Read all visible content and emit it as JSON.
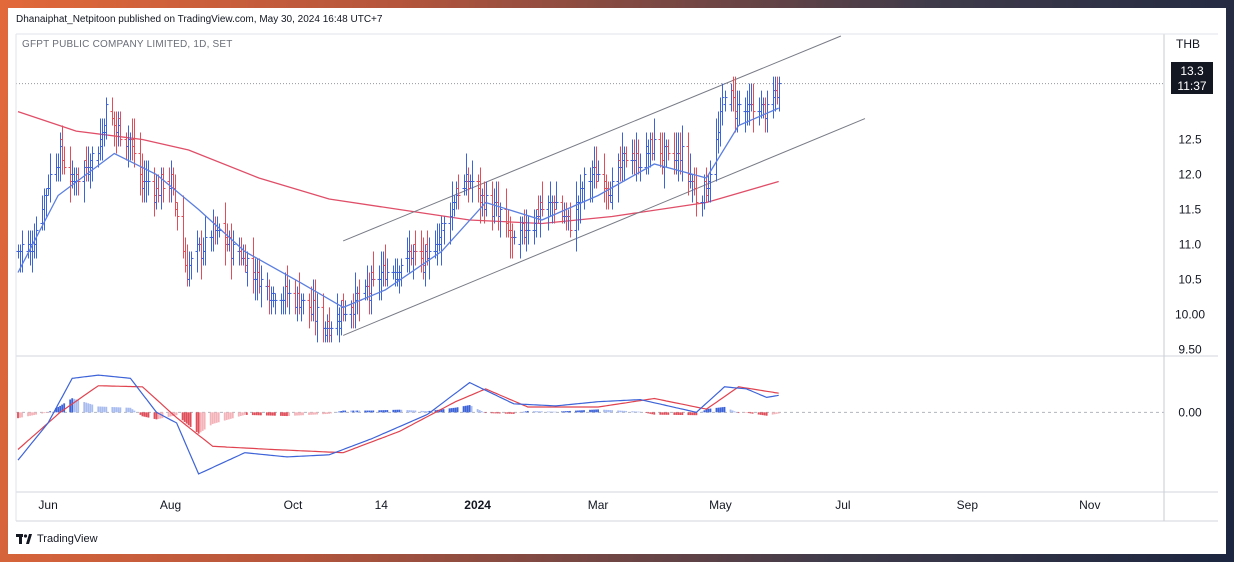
{
  "header": {
    "publish_line": "Dhanaiphat_Netpitoon published on TradingView.com, May 30, 2024 16:48 UTC+7",
    "symbol_line": "GFPT PUBLIC COMPANY LIMITED, 1D, SET"
  },
  "price_scale": {
    "currency": "THB",
    "last_price": "13.3",
    "countdown": "11:37"
  },
  "footer": {
    "brand": "TradingView"
  },
  "colors": {
    "up": "#3d63d8",
    "down": "#e04e5a",
    "ma_short": "#5b7fe0",
    "ma_long": "#e04e68",
    "macd_line": "#3d63d8",
    "signal_line": "#e0434f",
    "channel": "#787b86"
  },
  "chart_data": [
    {
      "type": "candlestick",
      "title": "GFPT PUBLIC COMPANY LIMITED, 1D, SET",
      "x_ticks": [
        "Jun",
        "Aug",
        "Oct",
        "14",
        "2024",
        "Mar",
        "May",
        "Jul",
        "Sep",
        "Nov"
      ],
      "y_ticks": [
        9.5,
        10.0,
        10.5,
        11.0,
        11.5,
        12.0,
        12.5
      ],
      "ylim": [
        9.42,
        13.98
      ],
      "start_date": "2023-05-17",
      "last_date": "2024-05-30",
      "xlim": [
        "2023-05-17",
        "2024-11-30"
      ],
      "last_price": 13.3,
      "close_anchors": [
        [
          "2023-05-17",
          10.9
        ],
        [
          "2023-05-24",
          11.0
        ],
        [
          "2023-06-01",
          11.9
        ],
        [
          "2023-06-07",
          12.3
        ],
        [
          "2023-06-13",
          11.9
        ],
        [
          "2023-06-19",
          12.1
        ],
        [
          "2023-06-26",
          12.4
        ],
        [
          "2023-06-30",
          12.9
        ],
        [
          "2023-07-06",
          12.6
        ],
        [
          "2023-07-12",
          12.5
        ],
        [
          "2023-07-18",
          11.9
        ],
        [
          "2023-07-25",
          11.8
        ],
        [
          "2023-08-01",
          11.9
        ],
        [
          "2023-08-04",
          11.4
        ],
        [
          "2023-08-09",
          10.6
        ],
        [
          "2023-08-15",
          10.9
        ],
        [
          "2023-08-22",
          11.2
        ],
        [
          "2023-08-30",
          11.0
        ],
        [
          "2023-09-07",
          10.8
        ],
        [
          "2023-09-14",
          10.5
        ],
        [
          "2023-09-21",
          10.3
        ],
        [
          "2023-09-28",
          10.3
        ],
        [
          "2023-10-05",
          10.2
        ],
        [
          "2023-10-12",
          10.0
        ],
        [
          "2023-10-19",
          9.8
        ],
        [
          "2023-10-26",
          10.1
        ],
        [
          "2023-11-02",
          10.2
        ],
        [
          "2023-11-09",
          10.4
        ],
        [
          "2023-11-16",
          10.6
        ],
        [
          "2023-11-23",
          10.7
        ],
        [
          "2023-11-30",
          10.9
        ],
        [
          "2023-12-07",
          10.7
        ],
        [
          "2023-12-14",
          11.2
        ],
        [
          "2023-12-21",
          11.7
        ],
        [
          "2023-12-28",
          11.9
        ],
        [
          "2024-01-05",
          11.6
        ],
        [
          "2024-01-12",
          11.4
        ],
        [
          "2024-01-19",
          11.0
        ],
        [
          "2024-01-26",
          11.3
        ],
        [
          "2024-02-02",
          11.5
        ],
        [
          "2024-02-09",
          11.6
        ],
        [
          "2024-02-16",
          11.3
        ],
        [
          "2024-02-23",
          11.9
        ],
        [
          "2024-03-01",
          12.0
        ],
        [
          "2024-03-08",
          11.8
        ],
        [
          "2024-03-15",
          12.3
        ],
        [
          "2024-03-22",
          12.2
        ],
        [
          "2024-03-29",
          12.4
        ],
        [
          "2024-04-05",
          12.2
        ],
        [
          "2024-04-12",
          12.3
        ],
        [
          "2024-04-19",
          11.7
        ],
        [
          "2024-04-24",
          11.8
        ],
        [
          "2024-04-30",
          12.6
        ],
        [
          "2024-05-03",
          13.2
        ],
        [
          "2024-05-08",
          13.0
        ],
        [
          "2024-05-14",
          12.9
        ],
        [
          "2024-05-20",
          13.0
        ],
        [
          "2024-05-24",
          12.9
        ],
        [
          "2024-05-30",
          13.3
        ]
      ],
      "moving_averages": [
        {
          "points": [
            [
              "2023-05-17",
              10.6
            ],
            [
              "2023-06-06",
              11.7
            ],
            [
              "2023-07-04",
              12.3
            ],
            [
              "2023-07-25",
              12.0
            ],
            [
              "2023-08-15",
              11.5
            ],
            [
              "2023-09-07",
              10.9
            ],
            [
              "2023-10-05",
              10.45
            ],
            [
              "2023-10-26",
              10.1
            ],
            [
              "2023-11-16",
              10.35
            ],
            [
              "2023-12-14",
              10.9
            ],
            [
              "2024-01-05",
              11.6
            ],
            [
              "2024-02-02",
              11.35
            ],
            [
              "2024-03-01",
              11.7
            ],
            [
              "2024-03-29",
              12.15
            ],
            [
              "2024-04-24",
              11.95
            ],
            [
              "2024-05-10",
              12.7
            ],
            [
              "2024-05-30",
              12.95
            ]
          ]
        },
        {
          "points": [
            [
              "2023-05-17",
              12.9
            ],
            [
              "2023-06-15",
              12.62
            ],
            [
              "2023-07-18",
              12.5
            ],
            [
              "2023-08-10",
              12.35
            ],
            [
              "2023-09-14",
              11.95
            ],
            [
              "2023-10-19",
              11.65
            ],
            [
              "2023-11-23",
              11.5
            ],
            [
              "2023-12-28",
              11.35
            ],
            [
              "2024-02-02",
              11.3
            ],
            [
              "2024-03-08",
              11.4
            ],
            [
              "2024-04-24",
              11.6
            ],
            [
              "2024-05-30",
              11.9
            ]
          ]
        }
      ],
      "channel_lines": [
        [
          [
            "2023-10-26",
            11.05
          ],
          [
            "2024-06-30",
            13.98
          ]
        ],
        [
          [
            "2023-10-26",
            9.7
          ],
          [
            "2024-07-12",
            12.8
          ]
        ]
      ]
    },
    {
      "type": "macd",
      "y_ticks": [
        0.0
      ],
      "ylim": [
        -0.75,
        0.53
      ],
      "macd_anchors": [
        [
          "2023-05-17",
          -0.45
        ],
        [
          "2023-06-01",
          -0.1
        ],
        [
          "2023-06-13",
          0.32
        ],
        [
          "2023-06-26",
          0.35
        ],
        [
          "2023-07-12",
          0.32
        ],
        [
          "2023-07-25",
          0.0
        ],
        [
          "2023-08-04",
          -0.1
        ],
        [
          "2023-08-15",
          -0.58
        ],
        [
          "2023-09-07",
          -0.38
        ],
        [
          "2023-09-28",
          -0.42
        ],
        [
          "2023-10-19",
          -0.4
        ],
        [
          "2023-11-09",
          -0.25
        ],
        [
          "2023-12-07",
          -0.02
        ],
        [
          "2023-12-28",
          0.28
        ],
        [
          "2024-01-19",
          0.08
        ],
        [
          "2024-02-09",
          0.06
        ],
        [
          "2024-03-01",
          0.1
        ],
        [
          "2024-03-22",
          0.12
        ],
        [
          "2024-04-19",
          0.0
        ],
        [
          "2024-05-03",
          0.24
        ],
        [
          "2024-05-14",
          0.22
        ],
        [
          "2024-05-24",
          0.14
        ],
        [
          "2024-05-30",
          0.16
        ]
      ],
      "signal_anchors": [
        [
          "2023-05-17",
          -0.35
        ],
        [
          "2023-06-07",
          0.0
        ],
        [
          "2023-06-26",
          0.25
        ],
        [
          "2023-07-18",
          0.24
        ],
        [
          "2023-08-04",
          -0.05
        ],
        [
          "2023-08-22",
          -0.32
        ],
        [
          "2023-09-21",
          -0.35
        ],
        [
          "2023-10-26",
          -0.38
        ],
        [
          "2023-11-23",
          -0.18
        ],
        [
          "2023-12-21",
          0.1
        ],
        [
          "2024-01-05",
          0.22
        ],
        [
          "2024-01-26",
          0.05
        ],
        [
          "2024-03-01",
          0.05
        ],
        [
          "2024-03-29",
          0.13
        ],
        [
          "2024-04-24",
          0.03
        ],
        [
          "2024-05-10",
          0.24
        ],
        [
          "2024-05-30",
          0.18
        ]
      ]
    }
  ]
}
